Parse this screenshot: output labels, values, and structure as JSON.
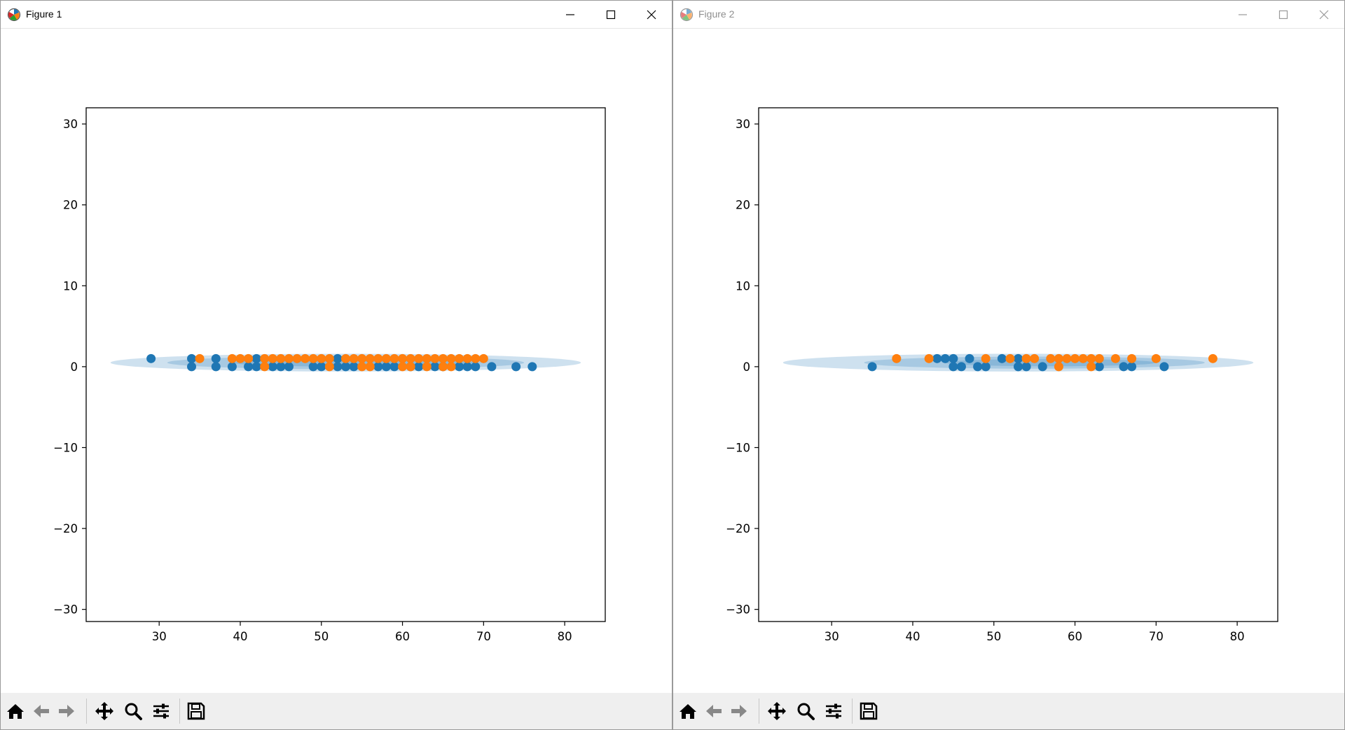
{
  "windows": [
    {
      "title": "Figure 1",
      "active": true,
      "controls": [
        "minimize",
        "maximize",
        "close"
      ],
      "toolbar": [
        "home-icon",
        "back-icon",
        "forward-icon",
        "pan-icon",
        "zoom-icon",
        "configure-subplots-icon",
        "save-icon"
      ]
    },
    {
      "title": "Figure 2",
      "active": false,
      "controls": [
        "minimize",
        "maximize",
        "close"
      ],
      "toolbar": [
        "home-icon",
        "back-icon",
        "forward-icon",
        "pan-icon",
        "zoom-icon",
        "configure-subplots-icon",
        "save-icon"
      ]
    }
  ],
  "colors": {
    "series0": "#1f77b4",
    "series1": "#ff7f0e",
    "ellipse": "#1f77b4"
  },
  "chart_data": [
    {
      "type": "scatter",
      "title": "",
      "xlabel": "",
      "ylabel": "",
      "xlim": [
        21,
        85
      ],
      "ylim": [
        -31.5,
        32
      ],
      "xticks": [
        30,
        40,
        50,
        60,
        70,
        80
      ],
      "yticks": [
        30,
        20,
        10,
        0,
        -10,
        -20,
        -30
      ],
      "xtick_labels": [
        "30",
        "40",
        "50",
        "60",
        "70",
        "80"
      ],
      "ytick_labels": [
        "30",
        "20",
        "10",
        "0",
        "−10",
        "−20",
        "−30"
      ],
      "grid": false,
      "ellipses": [
        {
          "center": [
            53,
            0.5
          ],
          "width": 58,
          "height": 2.2,
          "opacity": 0.22
        },
        {
          "center": [
            53,
            0.5
          ],
          "width": 44,
          "height": 1.6,
          "opacity": 0.22
        },
        {
          "center": [
            54,
            0.5
          ],
          "width": 30,
          "height": 1.0,
          "opacity": 0.22
        }
      ],
      "series": [
        {
          "color": "#1f77b4",
          "points": [
            [
              29,
              1
            ],
            [
              34,
              1
            ],
            [
              37,
              1
            ],
            [
              42,
              1
            ],
            [
              52,
              1
            ],
            [
              34,
              0
            ],
            [
              37,
              0
            ],
            [
              39,
              0
            ],
            [
              41,
              0
            ],
            [
              42,
              0
            ],
            [
              44,
              0
            ],
            [
              45,
              0
            ],
            [
              46,
              0
            ],
            [
              49,
              0
            ],
            [
              50,
              0
            ],
            [
              52,
              0
            ],
            [
              53,
              0
            ],
            [
              54,
              0
            ],
            [
              57,
              0
            ],
            [
              58,
              0
            ],
            [
              59,
              0
            ],
            [
              61,
              0
            ],
            [
              62,
              0
            ],
            [
              64,
              0
            ],
            [
              65,
              0
            ],
            [
              67,
              0
            ],
            [
              68,
              0
            ],
            [
              69,
              0
            ],
            [
              71,
              0
            ],
            [
              74,
              0
            ],
            [
              76,
              0
            ]
          ]
        },
        {
          "color": "#ff7f0e",
          "points": [
            [
              35,
              1
            ],
            [
              39,
              1
            ],
            [
              40,
              1
            ],
            [
              41,
              1
            ],
            [
              43,
              1
            ],
            [
              44,
              1
            ],
            [
              45,
              1
            ],
            [
              46,
              1
            ],
            [
              47,
              1
            ],
            [
              48,
              1
            ],
            [
              49,
              1
            ],
            [
              50,
              1
            ],
            [
              51,
              1
            ],
            [
              53,
              1
            ],
            [
              54,
              1
            ],
            [
              55,
              1
            ],
            [
              56,
              1
            ],
            [
              57,
              1
            ],
            [
              58,
              1
            ],
            [
              59,
              1
            ],
            [
              60,
              1
            ],
            [
              61,
              1
            ],
            [
              62,
              1
            ],
            [
              63,
              1
            ],
            [
              64,
              1
            ],
            [
              65,
              1
            ],
            [
              66,
              1
            ],
            [
              67,
              1
            ],
            [
              68,
              1
            ],
            [
              69,
              1
            ],
            [
              70,
              1
            ],
            [
              43,
              0
            ],
            [
              51,
              0
            ],
            [
              55,
              0
            ],
            [
              56,
              0
            ],
            [
              60,
              0
            ],
            [
              61,
              0
            ],
            [
              63,
              0
            ],
            [
              65,
              0
            ],
            [
              66,
              0
            ]
          ]
        }
      ]
    },
    {
      "type": "scatter",
      "title": "",
      "xlabel": "",
      "ylabel": "",
      "xlim": [
        21,
        85
      ],
      "ylim": [
        -31.5,
        32
      ],
      "xticks": [
        30,
        40,
        50,
        60,
        70,
        80
      ],
      "yticks": [
        30,
        20,
        10,
        0,
        -10,
        -20,
        -30
      ],
      "xtick_labels": [
        "30",
        "40",
        "50",
        "60",
        "70",
        "80"
      ],
      "ytick_labels": [
        "30",
        "20",
        "10",
        "0",
        "−10",
        "−20",
        "−30"
      ],
      "grid": false,
      "ellipses": [
        {
          "center": [
            53,
            0.5
          ],
          "width": 58,
          "height": 2.2,
          "opacity": 0.22
        },
        {
          "center": [
            55,
            0.5
          ],
          "width": 42,
          "height": 1.5,
          "opacity": 0.22
        },
        {
          "center": [
            57,
            0.5
          ],
          "width": 26,
          "height": 0.9,
          "opacity": 0.22
        }
      ],
      "series": [
        {
          "color": "#1f77b4",
          "points": [
            [
              43,
              1
            ],
            [
              44,
              1
            ],
            [
              45,
              1
            ],
            [
              47,
              1
            ],
            [
              51,
              1
            ],
            [
              53,
              1
            ],
            [
              35,
              0
            ],
            [
              45,
              0
            ],
            [
              46,
              0
            ],
            [
              48,
              0
            ],
            [
              49,
              0
            ],
            [
              53,
              0
            ],
            [
              54,
              0
            ],
            [
              56,
              0
            ],
            [
              63,
              0
            ],
            [
              66,
              0
            ],
            [
              67,
              0
            ],
            [
              71,
              0
            ]
          ]
        },
        {
          "color": "#ff7f0e",
          "points": [
            [
              38,
              1
            ],
            [
              42,
              1
            ],
            [
              49,
              1
            ],
            [
              52,
              1
            ],
            [
              54,
              1
            ],
            [
              55,
              1
            ],
            [
              57,
              1
            ],
            [
              58,
              1
            ],
            [
              59,
              1
            ],
            [
              60,
              1
            ],
            [
              61,
              1
            ],
            [
              62,
              1
            ],
            [
              63,
              1
            ],
            [
              65,
              1
            ],
            [
              67,
              1
            ],
            [
              70,
              1
            ],
            [
              77,
              1
            ],
            [
              58,
              0
            ],
            [
              62,
              0
            ]
          ]
        }
      ]
    }
  ]
}
